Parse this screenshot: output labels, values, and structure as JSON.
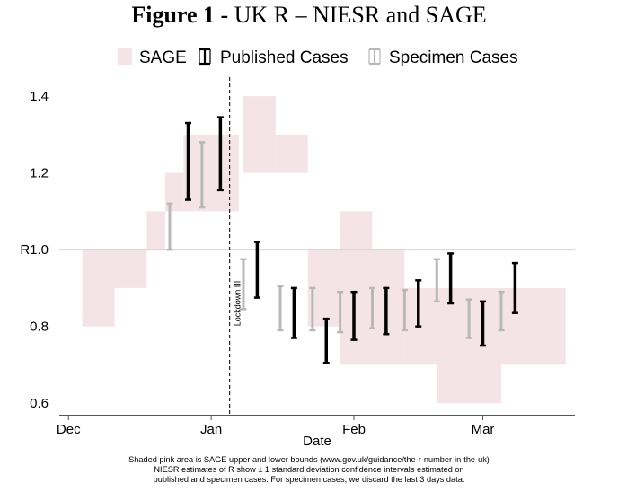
{
  "figure": {
    "label": "Figure 1",
    "separator": " - ",
    "subtitle": "UK R – NIESR and SAGE"
  },
  "footnote": [
    "Shaded pink area is SAGE upper and lower bounds (www.gov.uk/guidance/the-r-number-in-the-uk)",
    "NIESR estimates of R show ± 1 standard deviation confidence intervals estimated on",
    "published and specimen cases. For specimen cases, we discard the last 3 days data."
  ],
  "colors": {
    "sage_fill": "#f4e4e7",
    "published": "#000000",
    "specimen": "#b8b8b8",
    "reference_line": "#e7cfc6",
    "axis": "#555555"
  },
  "chart_data": {
    "type": "errorbar",
    "title": "Figure 1 - UK R – NIESR and SAGE",
    "xlabel": "Date",
    "ylabel": "",
    "x_domain": [
      "2020-11-29",
      "2021-03-21"
    ],
    "ylim": [
      0.57,
      1.44
    ],
    "x_ticks": [
      {
        "date": "2020-12-01",
        "label": "Dec"
      },
      {
        "date": "2021-01-01",
        "label": "Jan"
      },
      {
        "date": "2021-02-01",
        "label": "Feb"
      },
      {
        "date": "2021-03-01",
        "label": "Mar"
      }
    ],
    "y_ticks": [
      {
        "value": 0.6,
        "label": "0.6"
      },
      {
        "value": 0.8,
        "label": "0.8"
      },
      {
        "value": 1.0,
        "label": "R1.0"
      },
      {
        "value": 1.2,
        "label": "1.2"
      },
      {
        "value": 1.4,
        "label": "1.4"
      }
    ],
    "grid": false,
    "legend": {
      "placement": "top",
      "entries": [
        "SAGE",
        "Published Cases",
        "Specimen Cases"
      ]
    },
    "reference_line": {
      "y": 1.0
    },
    "annotations": [
      {
        "date": "2021-01-05",
        "text": "Lockdown III",
        "style": "dashed-vertical"
      }
    ],
    "sage_band": [
      {
        "start": "2020-12-04",
        "end": "2020-12-10",
        "lower": 0.8,
        "upper": 1.0
      },
      {
        "start": "2020-12-11",
        "end": "2020-12-17",
        "lower": 0.9,
        "upper": 1.0
      },
      {
        "start": "2020-12-18",
        "end": "2020-12-21",
        "lower": 1.0,
        "upper": 1.1
      },
      {
        "start": "2020-12-22",
        "end": "2020-12-25",
        "lower": 1.1,
        "upper": 1.2
      },
      {
        "start": "2020-12-26",
        "end": "2021-01-06",
        "lower": 1.1,
        "upper": 1.3
      },
      {
        "start": "2021-01-08",
        "end": "2021-01-14",
        "lower": 1.2,
        "upper": 1.4
      },
      {
        "start": "2021-01-15",
        "end": "2021-01-21",
        "lower": 1.2,
        "upper": 1.3
      },
      {
        "start": "2021-01-22",
        "end": "2021-01-28",
        "lower": 0.8,
        "upper": 1.0
      },
      {
        "start": "2021-01-29",
        "end": "2021-02-04",
        "lower": 0.7,
        "upper": 1.1
      },
      {
        "start": "2021-02-05",
        "end": "2021-02-11",
        "lower": 0.7,
        "upper": 1.0
      },
      {
        "start": "2021-02-12",
        "end": "2021-02-18",
        "lower": 0.7,
        "upper": 0.9
      },
      {
        "start": "2021-02-19",
        "end": "2021-03-04",
        "lower": 0.6,
        "upper": 0.9
      },
      {
        "start": "2021-03-05",
        "end": "2021-03-18",
        "lower": 0.7,
        "upper": 0.9
      }
    ],
    "series": [
      {
        "name": "Published Cases",
        "points": [
          {
            "date": "2020-12-27",
            "lower": 1.13,
            "upper": 1.33
          },
          {
            "date": "2021-01-03",
            "lower": 1.155,
            "upper": 1.345
          },
          {
            "date": "2021-01-11",
            "lower": 0.875,
            "upper": 1.02
          },
          {
            "date": "2021-01-19",
            "lower": 0.77,
            "upper": 0.9
          },
          {
            "date": "2021-01-26",
            "lower": 0.705,
            "upper": 0.82
          },
          {
            "date": "2021-02-01",
            "lower": 0.765,
            "upper": 0.89
          },
          {
            "date": "2021-02-08",
            "lower": 0.78,
            "upper": 0.9
          },
          {
            "date": "2021-02-15",
            "lower": 0.8,
            "upper": 0.92
          },
          {
            "date": "2021-02-22",
            "lower": 0.86,
            "upper": 0.99
          },
          {
            "date": "2021-03-01",
            "lower": 0.75,
            "upper": 0.865
          },
          {
            "date": "2021-03-08",
            "lower": 0.835,
            "upper": 0.965
          }
        ]
      },
      {
        "name": "Specimen Cases",
        "points": [
          {
            "date": "2020-12-23",
            "lower": 1.0,
            "upper": 1.12
          },
          {
            "date": "2020-12-30",
            "lower": 1.11,
            "upper": 1.28
          },
          {
            "date": "2021-01-08",
            "lower": 0.845,
            "upper": 0.975
          },
          {
            "date": "2021-01-16",
            "lower": 0.79,
            "upper": 0.905
          },
          {
            "date": "2021-01-23",
            "lower": 0.79,
            "upper": 0.9
          },
          {
            "date": "2021-01-29",
            "lower": 0.785,
            "upper": 0.89
          },
          {
            "date": "2021-02-05",
            "lower": 0.795,
            "upper": 0.9
          },
          {
            "date": "2021-02-12",
            "lower": 0.79,
            "upper": 0.895
          },
          {
            "date": "2021-02-19",
            "lower": 0.865,
            "upper": 0.975
          },
          {
            "date": "2021-02-26",
            "lower": 0.77,
            "upper": 0.87
          },
          {
            "date": "2021-03-05",
            "lower": 0.79,
            "upper": 0.89
          }
        ]
      }
    ]
  }
}
